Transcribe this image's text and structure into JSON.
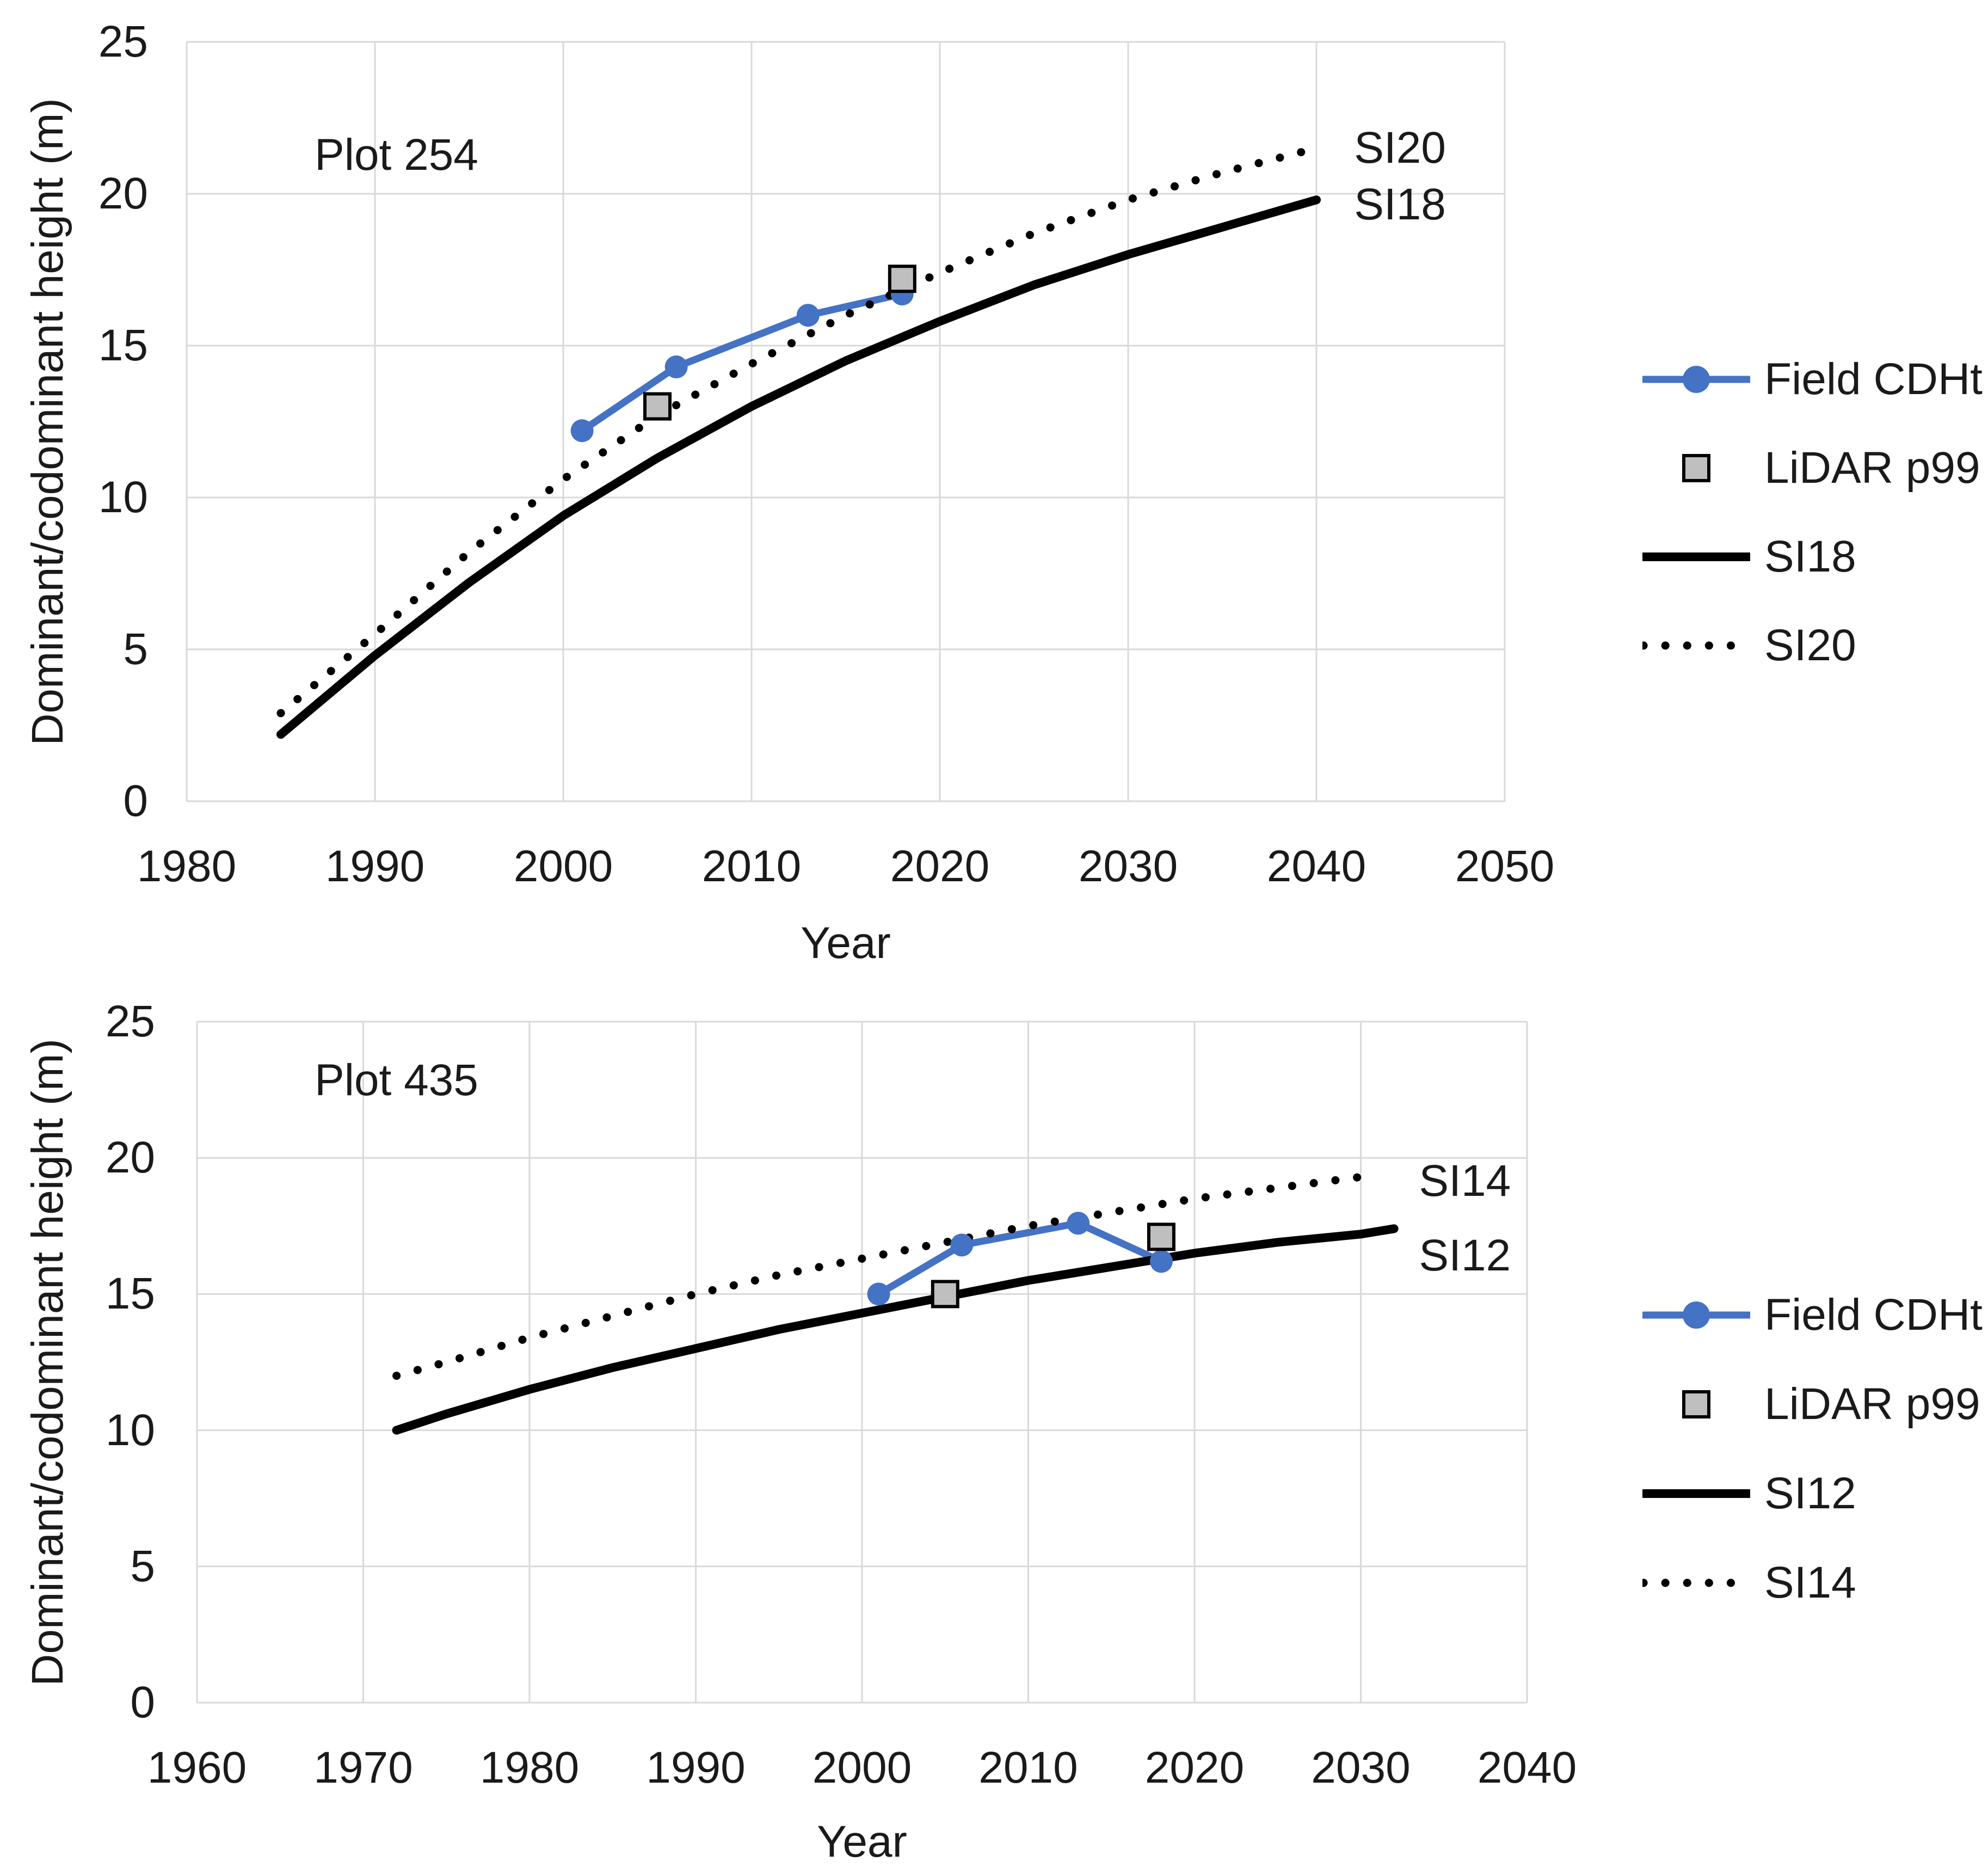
{
  "figure": {
    "background": "#ffffff"
  },
  "colors": {
    "field_line": "#4472C4",
    "lidar_fill": "#BFBFBF",
    "lidar_stroke": "#000000",
    "si_curve": "#000000",
    "gridline": "#D9D9D9",
    "text": "#1a1a1a"
  },
  "chart_data": [
    {
      "type": "line",
      "title": "Plot 254",
      "xlabel": "Year",
      "ylabel": "Dominant/codominant height (m)",
      "xlim": [
        1980,
        2050
      ],
      "ylim": [
        0,
        25
      ],
      "x_ticks": [
        1980,
        1990,
        2000,
        2010,
        2020,
        2030,
        2040,
        2050
      ],
      "y_ticks": [
        0,
        5,
        10,
        15,
        20,
        25
      ],
      "grid": true,
      "legend_position": "right-outside",
      "series": [
        {
          "name": "Field CDHt",
          "type": "line",
          "style": "solid",
          "marker": "circle",
          "color": "#4472C4",
          "points": [
            [
              2001,
              12.2
            ],
            [
              2006,
              14.3
            ],
            [
              2013,
              16.0
            ],
            [
              2018,
              16.7
            ]
          ]
        },
        {
          "name": "LiDAR p99",
          "type": "scatter",
          "marker": "square",
          "fill": "#BFBFBF",
          "stroke": "#000000",
          "points": [
            [
              2005,
              13.0
            ],
            [
              2018,
              17.2
            ]
          ]
        },
        {
          "name": "SI18",
          "type": "line",
          "style": "solid",
          "color": "#000000",
          "points": [
            [
              1985,
              2.2
            ],
            [
              1990,
              4.8
            ],
            [
              1995,
              7.2
            ],
            [
              2000,
              9.4
            ],
            [
              2005,
              11.3
            ],
            [
              2010,
              13.0
            ],
            [
              2015,
              14.5
            ],
            [
              2020,
              15.8
            ],
            [
              2025,
              17.0
            ],
            [
              2030,
              18.0
            ],
            [
              2035,
              18.9
            ],
            [
              2040,
              19.8
            ]
          ]
        },
        {
          "name": "SI20",
          "type": "line",
          "style": "dotted",
          "color": "#000000",
          "points": [
            [
              1985,
              2.9
            ],
            [
              1990,
              5.5
            ],
            [
              1995,
              8.2
            ],
            [
              2000,
              10.6
            ],
            [
              2005,
              12.7
            ],
            [
              2010,
              14.4
            ],
            [
              2015,
              16.0
            ],
            [
              2020,
              17.4
            ],
            [
              2025,
              18.7
            ],
            [
              2030,
              19.8
            ],
            [
              2035,
              20.7
            ],
            [
              2040,
              21.5
            ]
          ]
        }
      ],
      "annotations": [
        {
          "text": "SI20",
          "x": 2042,
          "y": 21.5
        },
        {
          "text": "SI18",
          "x": 2042,
          "y": 19.65
        }
      ],
      "legend": [
        "Field CDHt",
        "LiDAR p99",
        "SI18",
        "SI20"
      ]
    },
    {
      "type": "line",
      "title": "Plot 435",
      "xlabel": "Year",
      "ylabel": "Dominant/codominant height (m)",
      "xlim": [
        1960,
        2040
      ],
      "ylim": [
        0,
        25
      ],
      "x_ticks": [
        1960,
        1970,
        1980,
        1990,
        2000,
        2010,
        2020,
        2030,
        2040
      ],
      "y_ticks": [
        0,
        5,
        10,
        15,
        20,
        25
      ],
      "grid": true,
      "legend_position": "right-outside",
      "series": [
        {
          "name": "Field CDHt",
          "type": "line",
          "style": "solid",
          "marker": "circle",
          "color": "#4472C4",
          "points": [
            [
              2001,
              15.0
            ],
            [
              2006,
              16.8
            ],
            [
              2013,
              17.6
            ],
            [
              2018,
              16.2
            ]
          ]
        },
        {
          "name": "LiDAR p99",
          "type": "scatter",
          "marker": "square",
          "fill": "#BFBFBF",
          "stroke": "#000000",
          "points": [
            [
              2005,
              15.0
            ],
            [
              2018,
              17.1
            ]
          ]
        },
        {
          "name": "SI12",
          "type": "line",
          "style": "solid",
          "color": "#000000",
          "points": [
            [
              1972,
              10.0
            ],
            [
              1975,
              10.6
            ],
            [
              1980,
              11.5
            ],
            [
              1985,
              12.3
            ],
            [
              1990,
              13.0
            ],
            [
              1995,
              13.7
            ],
            [
              2000,
              14.3
            ],
            [
              2005,
              14.9
            ],
            [
              2010,
              15.5
            ],
            [
              2015,
              16.0
            ],
            [
              2020,
              16.5
            ],
            [
              2025,
              16.9
            ],
            [
              2030,
              17.2
            ],
            [
              2032,
              17.4
            ]
          ]
        },
        {
          "name": "SI14",
          "type": "line",
          "style": "dotted",
          "color": "#000000",
          "points": [
            [
              1972,
              12.0
            ],
            [
              1975,
              12.5
            ],
            [
              1980,
              13.4
            ],
            [
              1985,
              14.2
            ],
            [
              1990,
              15.0
            ],
            [
              1995,
              15.7
            ],
            [
              2000,
              16.3
            ],
            [
              2005,
              16.9
            ],
            [
              2010,
              17.5
            ],
            [
              2015,
              18.0
            ],
            [
              2020,
              18.5
            ],
            [
              2025,
              18.9
            ],
            [
              2030,
              19.3
            ],
            [
              2031,
              19.4
            ]
          ]
        }
      ],
      "annotations": [
        {
          "text": "SI14",
          "x": 2033.5,
          "y": 19.15
        },
        {
          "text": "SI12",
          "x": 2033.5,
          "y": 16.4
        }
      ],
      "legend": [
        "Field CDHt",
        "LiDAR p99",
        "SI12",
        "SI14"
      ]
    }
  ]
}
